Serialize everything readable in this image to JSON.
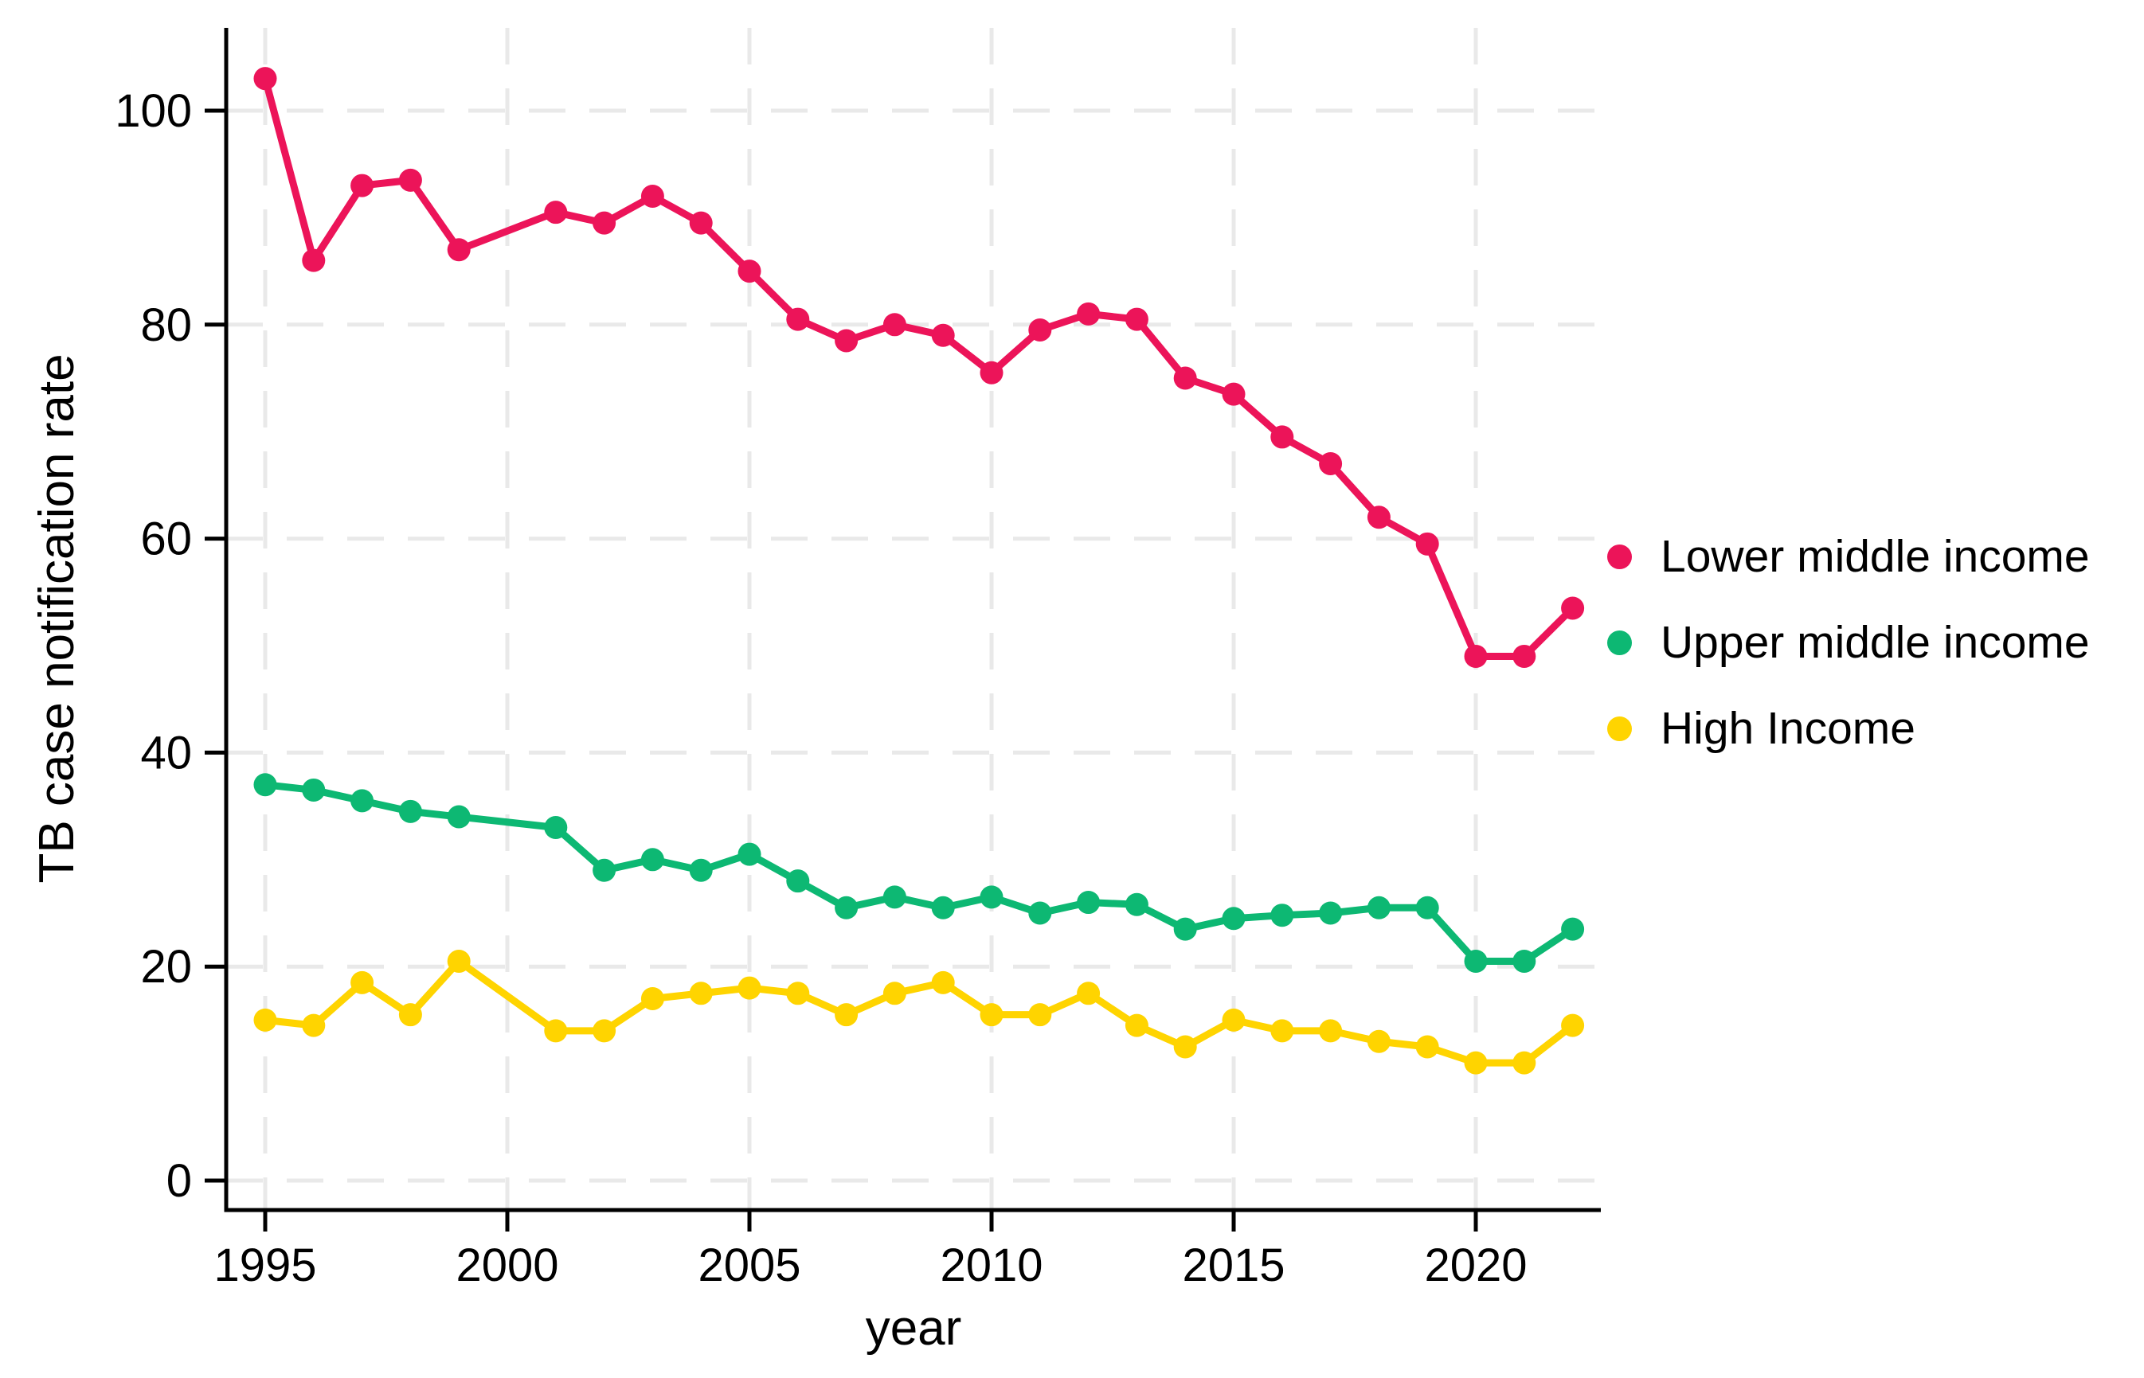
{
  "chart_data": {
    "type": "line",
    "title": "",
    "xlabel": "year",
    "ylabel": "TB case notification rate",
    "x": [
      1995,
      1996,
      1997,
      1998,
      1999,
      2001,
      2002,
      2003,
      2004,
      2005,
      2006,
      2007,
      2008,
      2009,
      2010,
      2011,
      2012,
      2013,
      2014,
      2015,
      2016,
      2017,
      2018,
      2019,
      2020,
      2021,
      2022
    ],
    "series": [
      {
        "name": "Lower middle income",
        "color": "#EC1459",
        "values": [
          103,
          86,
          93,
          93.5,
          87,
          90.5,
          89.5,
          92,
          89.5,
          85,
          80.5,
          78.5,
          80,
          79,
          75.5,
          79.5,
          81,
          80.5,
          75,
          73.5,
          69.5,
          67,
          62,
          59.5,
          49,
          49,
          53.5
        ]
      },
      {
        "name": "Upper middle income",
        "color": "#0DB873",
        "values": [
          37,
          36.5,
          35.5,
          34.5,
          34,
          33,
          29,
          30,
          29,
          30.5,
          28,
          25.5,
          26.5,
          25.5,
          26.5,
          25,
          26,
          25.8,
          23.5,
          24.5,
          24.8,
          25,
          25.5,
          25.5,
          20.5,
          20.5,
          23.5
        ]
      },
      {
        "name": "High Income",
        "color": "#FFD400",
        "values": [
          15,
          14.5,
          18.5,
          15.5,
          20.5,
          14,
          14,
          17,
          17.5,
          18,
          17.5,
          15.5,
          17.5,
          18.5,
          15.5,
          15.5,
          17.5,
          14.5,
          12.5,
          15,
          14,
          14,
          13,
          12.5,
          11,
          11,
          14.5
        ]
      }
    ],
    "x_ticks": [
      1995,
      2000,
      2005,
      2010,
      2015,
      2020
    ],
    "y_ticks": [
      0,
      20,
      40,
      60,
      80,
      100
    ],
    "xlim": [
      1994.2,
      2022.6
    ],
    "ylim": [
      0,
      107.5
    ],
    "grid": "dashed-both-axes",
    "grid_color": "#e9e9e9",
    "axis_color": "#000000",
    "marker": "circle",
    "legend_position": "right"
  }
}
